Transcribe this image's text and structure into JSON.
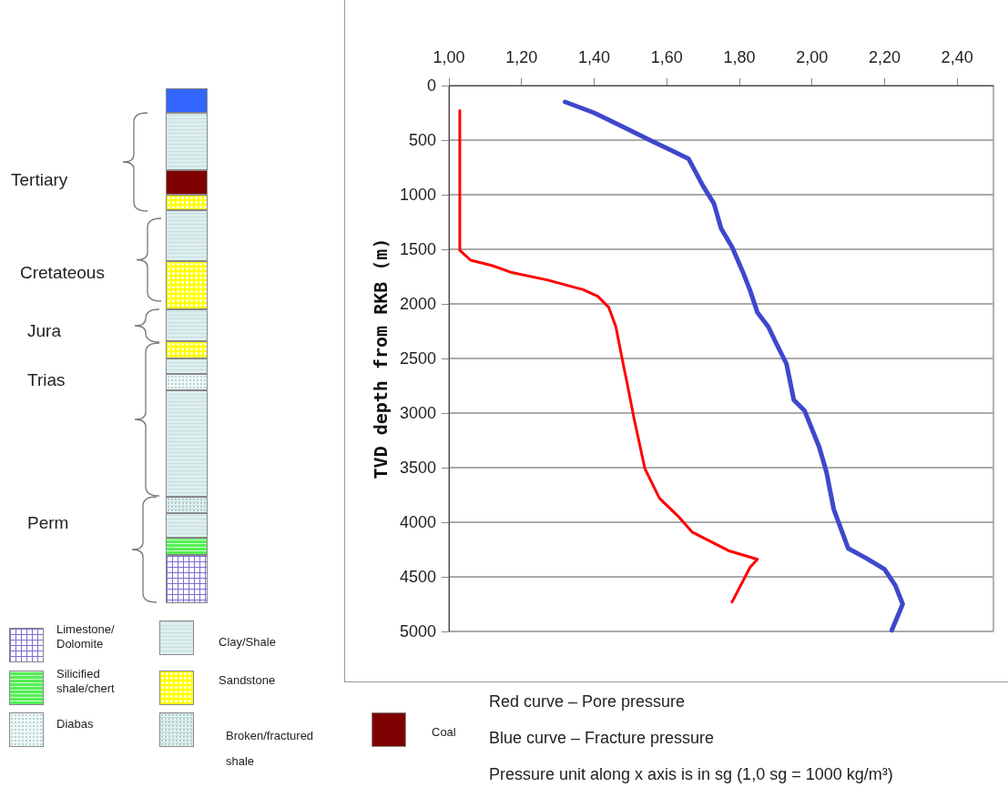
{
  "chart_data": {
    "type": "line",
    "ylabel": "TVD depth from RKB (m)",
    "xlim": [
      1.0,
      2.5
    ],
    "xticks": [
      {
        "value": 1.0,
        "label": "1,00"
      },
      {
        "value": 1.2,
        "label": "1,20"
      },
      {
        "value": 1.4,
        "label": "1,40"
      },
      {
        "value": 1.6,
        "label": "1,60"
      },
      {
        "value": 1.8,
        "label": "1,80"
      },
      {
        "value": 2.0,
        "label": "2,00"
      },
      {
        "value": 2.2,
        "label": "2,20"
      },
      {
        "value": 2.4,
        "label": "2,40"
      }
    ],
    "ylim": [
      5000,
      0
    ],
    "yticks": [
      0,
      500,
      1000,
      1500,
      2000,
      2500,
      3000,
      3500,
      4000,
      4500,
      5000
    ],
    "grid": "y",
    "marker": "none",
    "series": [
      {
        "color": "#ff0000",
        "x": [
          1.03,
          1.03,
          1.03,
          1.06,
          1.12,
          1.17,
          1.27,
          1.37,
          1.41,
          1.44,
          1.46,
          1.48,
          1.49,
          1.51,
          1.54,
          1.58,
          1.63,
          1.67,
          1.77,
          1.85,
          1.83,
          1.78
        ],
        "values": [
          230,
          1250,
          1510,
          1600,
          1650,
          1710,
          1780,
          1870,
          1930,
          2030,
          2210,
          2550,
          2710,
          3050,
          3510,
          3780,
          3940,
          4090,
          4260,
          4340,
          4410,
          4730
        ]
      },
      {
        "color": "#3f48cc",
        "x": [
          1.32,
          1.4,
          1.48,
          1.56,
          1.61,
          1.66,
          1.7,
          1.73,
          1.75,
          1.78,
          1.81,
          1.83,
          1.85,
          1.88,
          1.9,
          1.93,
          1.95,
          1.98,
          2.02,
          2.04,
          2.06,
          2.1,
          2.15,
          2.2,
          2.23,
          2.25,
          2.22
        ],
        "values": [
          150,
          250,
          380,
          510,
          590,
          670,
          920,
          1080,
          1310,
          1480,
          1710,
          1880,
          2080,
          2210,
          2350,
          2550,
          2880,
          2980,
          3310,
          3540,
          3880,
          4240,
          4330,
          4430,
          4580,
          4750,
          4990
        ]
      }
    ],
    "annotations": [
      "Tertiary",
      "Cretateous",
      "Jura",
      "Trias",
      "Perm",
      "Limestone/ Dolomite",
      "Clay/Shale",
      "Silicified shale/chert",
      "Sandstone",
      "Diabas",
      "Broken/fractured shale",
      "Coal",
      "Red curve – Pore pressure",
      "Blue curve – Fracture pressure",
      "Pressure unit along x axis is in sg (1,0 sg = 1000 kg/m³)"
    ]
  }
}
